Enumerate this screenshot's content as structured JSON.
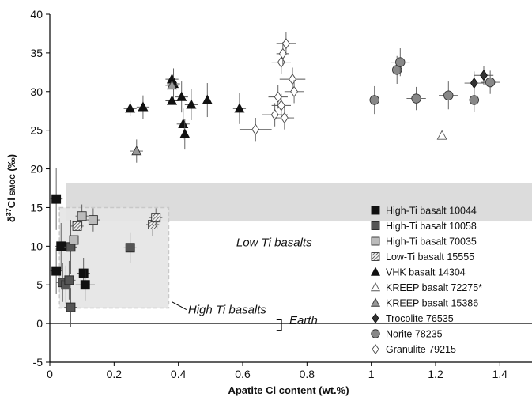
{
  "chart_data": {
    "type": "scatter",
    "xlabel": "Apatite Cl content (wt.%)",
    "ylabel_main": "δ",
    "ylabel_sup": "37",
    "ylabel_rest": "Cl",
    "ylabel_sub": "SMOC",
    "ylabel_unit": " (‰)",
    "xlim": [
      0,
      1.5
    ],
    "ylim": [
      -5,
      40
    ],
    "xticks": [
      0,
      0.2,
      0.4,
      0.6,
      0.8,
      1,
      1.2,
      1.4
    ],
    "xtick_labels": [
      "0",
      "0.2",
      "0.4",
      "0.6",
      "0.8",
      "1",
      "1.2",
      "1.4"
    ],
    "yticks": [
      -5,
      0,
      5,
      10,
      15,
      20,
      25,
      30,
      35,
      40
    ],
    "ytick_labels": [
      "-5",
      "0",
      "5",
      "10",
      "15",
      "20",
      "25",
      "30",
      "35",
      "40"
    ],
    "legend_position": "right",
    "regions": [
      {
        "label": "Low Ti basalts",
        "x": [
          0.05,
          1.5
        ],
        "y": [
          13.2,
          18.2
        ],
        "color": "#d8d8d8"
      },
      {
        "label": "High Ti basalts",
        "x": [
          0.03,
          0.37
        ],
        "y": [
          2.0,
          15.0
        ],
        "color": "#e4e4e4"
      }
    ],
    "annotations": [
      {
        "text": "Low Ti basalts",
        "x": 0.58,
        "y": 10.0
      },
      {
        "text": "High Ti basalts",
        "x": 0.43,
        "y": 1.3
      },
      {
        "text": "Earth",
        "x": 0.745,
        "y": -0.1
      }
    ],
    "earth_range": {
      "x": 0.72,
      "y": [
        -0.9,
        0.5
      ]
    },
    "series": [
      {
        "name": "High-Ti basalt 10044",
        "marker": "square",
        "fill": "#111111",
        "stroke": "#111111",
        "points": [
          [
            0.02,
            16.1,
            4.0,
            0.02
          ],
          [
            0.035,
            10.0,
            3.0,
            0.02
          ],
          [
            0.02,
            6.8,
            3.0,
            0.02
          ],
          [
            0.105,
            6.5,
            2.0,
            0.02
          ],
          [
            0.11,
            5.0,
            2.0,
            0.03
          ]
        ]
      },
      {
        "name": "High-Ti basalt 10058",
        "marker": "square",
        "fill": "#555555",
        "stroke": "#222222",
        "points": [
          [
            0.04,
            5.3,
            2.5,
            0.02
          ],
          [
            0.05,
            5.0,
            2.5,
            0.02
          ],
          [
            0.06,
            5.6,
            2.5,
            0.02
          ],
          [
            0.065,
            2.1,
            2.5,
            0.02
          ],
          [
            0.065,
            9.9,
            3.5,
            0.02
          ],
          [
            0.25,
            9.8,
            2.0,
            0.02
          ]
        ]
      },
      {
        "name": "High-Ti basalt 70035",
        "marker": "square",
        "fill": "#bbbbbb",
        "stroke": "#333333",
        "points": [
          [
            0.075,
            10.8,
            1.5,
            0.02
          ],
          [
            0.1,
            13.9,
            1.5,
            0.02
          ],
          [
            0.135,
            13.4,
            1.5,
            0.02
          ]
        ]
      },
      {
        "name": "Low-Ti basalt 15555",
        "marker": "hatched-square",
        "fill": "#dddddd",
        "stroke": "#333333",
        "points": [
          [
            0.085,
            12.6,
            1.5,
            0.02
          ],
          [
            0.32,
            12.8,
            1.5,
            0.02
          ],
          [
            0.33,
            13.7,
            1.2,
            0.02
          ]
        ]
      },
      {
        "name": "VHK basalt 14304",
        "marker": "triangle",
        "fill": "#111111",
        "stroke": "#111111",
        "points": [
          [
            0.25,
            27.8,
            1.0,
            0.02
          ],
          [
            0.29,
            28.0,
            1.5,
            0.02
          ],
          [
            0.38,
            31.6,
            1.5,
            0.02
          ],
          [
            0.385,
            31.0,
            2.0,
            0.02
          ],
          [
            0.38,
            28.8,
            1.8,
            0.02
          ],
          [
            0.41,
            29.3,
            2.0,
            0.02
          ],
          [
            0.415,
            25.8,
            2.0,
            0.02
          ],
          [
            0.42,
            24.5,
            2.0,
            0.02
          ],
          [
            0.44,
            28.3,
            2.0,
            0.02
          ],
          [
            0.49,
            28.9,
            2.2,
            0.02
          ],
          [
            0.59,
            27.8,
            2.0,
            0.02
          ]
        ]
      },
      {
        "name": "KREEP basalt 72275*",
        "marker": "triangle",
        "fill": "#ffffff",
        "stroke": "#555555",
        "points": [
          [
            1.22,
            24.3,
            0,
            0
          ]
        ]
      },
      {
        "name": "KREEP basalt 15386",
        "marker": "triangle",
        "fill": "#999999",
        "stroke": "#333333",
        "points": [
          [
            0.27,
            22.3,
            1.5,
            0.02
          ],
          [
            0.38,
            30.8,
            1.5,
            0.02
          ]
        ]
      },
      {
        "name": "Trocolite 76535",
        "marker": "diamond",
        "fill": "#333333",
        "stroke": "#111111",
        "points": [
          [
            1.32,
            31.1,
            1.5,
            0.03
          ],
          [
            1.35,
            32.1,
            1.2,
            0.03
          ]
        ]
      },
      {
        "name": "Norite 78235",
        "marker": "circle",
        "fill": "#888888",
        "stroke": "#333333",
        "points": [
          [
            1.01,
            28.9,
            1.8,
            0.03
          ],
          [
            1.08,
            32.8,
            1.8,
            0.03
          ],
          [
            1.09,
            33.8,
            1.8,
            0.03
          ],
          [
            1.14,
            29.1,
            1.5,
            0.03
          ],
          [
            1.24,
            29.5,
            1.8,
            0.03
          ],
          [
            1.32,
            28.9,
            1.5,
            0.03
          ],
          [
            1.37,
            31.2,
            1.5,
            0.03
          ]
        ]
      },
      {
        "name": "Granulite 79215",
        "marker": "diamond",
        "fill": "#ffffff",
        "stroke": "#444444",
        "points": [
          [
            0.64,
            25.1,
            1.5,
            0.05
          ],
          [
            0.7,
            27.0,
            1.5,
            0.04
          ],
          [
            0.71,
            29.3,
            1.5,
            0.03
          ],
          [
            0.72,
            28.2,
            1.5,
            0.03
          ],
          [
            0.73,
            26.6,
            1.5,
            0.03
          ],
          [
            0.72,
            33.8,
            1.5,
            0.03
          ],
          [
            0.725,
            34.9,
            1.5,
            0.02
          ],
          [
            0.735,
            36.2,
            1.5,
            0.03
          ],
          [
            0.755,
            31.6,
            1.5,
            0.04
          ],
          [
            0.76,
            30.0,
            1.5,
            0.03
          ]
        ]
      }
    ]
  }
}
